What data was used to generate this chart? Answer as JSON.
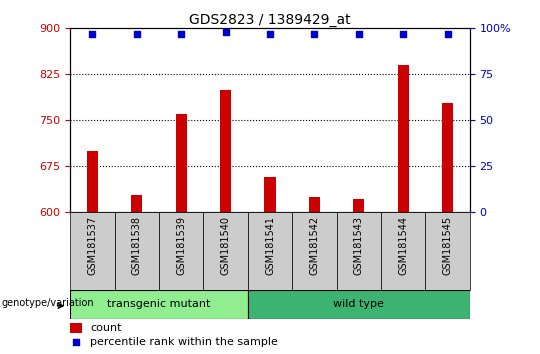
{
  "title": "GDS2823 / 1389429_at",
  "samples": [
    "GSM181537",
    "GSM181538",
    "GSM181539",
    "GSM181540",
    "GSM181541",
    "GSM181542",
    "GSM181543",
    "GSM181544",
    "GSM181545"
  ],
  "counts": [
    700,
    628,
    760,
    800,
    658,
    625,
    622,
    840,
    778
  ],
  "percentile_ranks": [
    97,
    97,
    97,
    98,
    97,
    97,
    97,
    97,
    97
  ],
  "ylim_left": [
    600,
    900
  ],
  "ylim_right": [
    0,
    100
  ],
  "yticks_left": [
    600,
    675,
    750,
    825,
    900
  ],
  "yticks_right": [
    0,
    25,
    50,
    75,
    100
  ],
  "bar_color": "#cc0000",
  "dot_color": "#0000cc",
  "grid_color": "#000000",
  "background_color": "#ffffff",
  "tick_area_color": "#cccccc",
  "transgenic_color": "#90ee90",
  "wildtype_color": "#3cb371",
  "transgenic_label": "transgenic mutant",
  "wildtype_label": "wild type",
  "genotype_label": "genotype/variation",
  "legend_count": "count",
  "legend_percentile": "percentile rank within the sample",
  "transgenic_samples": 4,
  "wildtype_samples": 5,
  "bar_width": 0.25
}
